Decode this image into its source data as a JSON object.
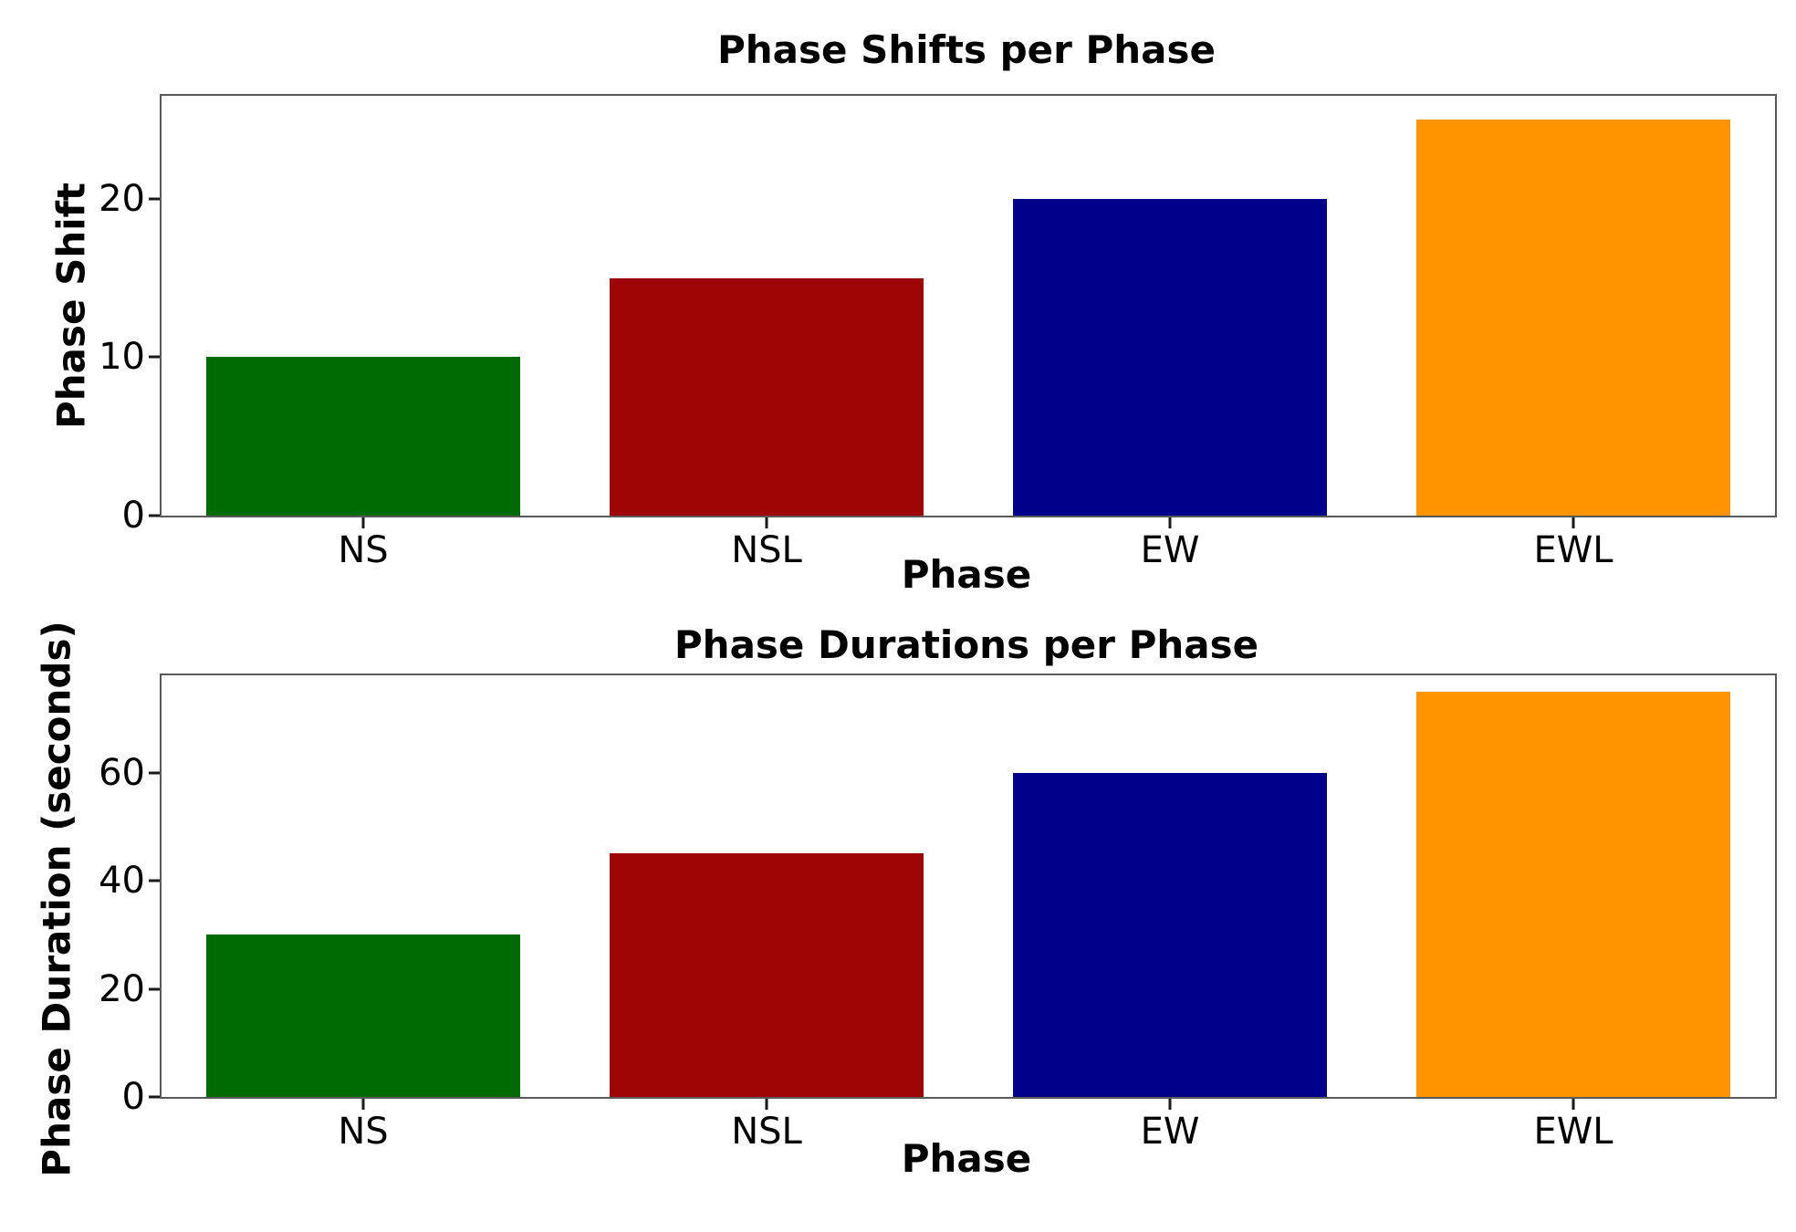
{
  "figure": {
    "background": "#ffffff"
  },
  "style": {
    "bar_colors": [
      "#006B00",
      "#9E0404",
      "#00008B",
      "#FF9300"
    ],
    "spine_color": "#595959",
    "tick_color": "#1a1a1a",
    "text_color": "#000000"
  },
  "chart_data": [
    {
      "type": "bar",
      "title": "Phase Shifts per Phase",
      "xlabel": "Phase",
      "ylabel": "Phase Shift",
      "categories": [
        "NS",
        "NSL",
        "EW",
        "EWL"
      ],
      "values": [
        10,
        15,
        20,
        25
      ],
      "yticks": [
        0,
        10,
        20
      ],
      "ylim": [
        0,
        26.5
      ],
      "grid": false,
      "legend": "none",
      "bar_width_fraction": 0.78
    },
    {
      "type": "bar",
      "title": "Phase Durations per Phase",
      "xlabel": "Phase",
      "ylabel": "Phase Duration (seconds)",
      "categories": [
        "NS",
        "NSL",
        "EW",
        "EWL"
      ],
      "values": [
        30,
        45,
        60,
        75
      ],
      "yticks": [
        0,
        20,
        40,
        60
      ],
      "ylim": [
        0,
        78
      ],
      "grid": false,
      "legend": "none",
      "bar_width_fraction": 0.78
    }
  ]
}
